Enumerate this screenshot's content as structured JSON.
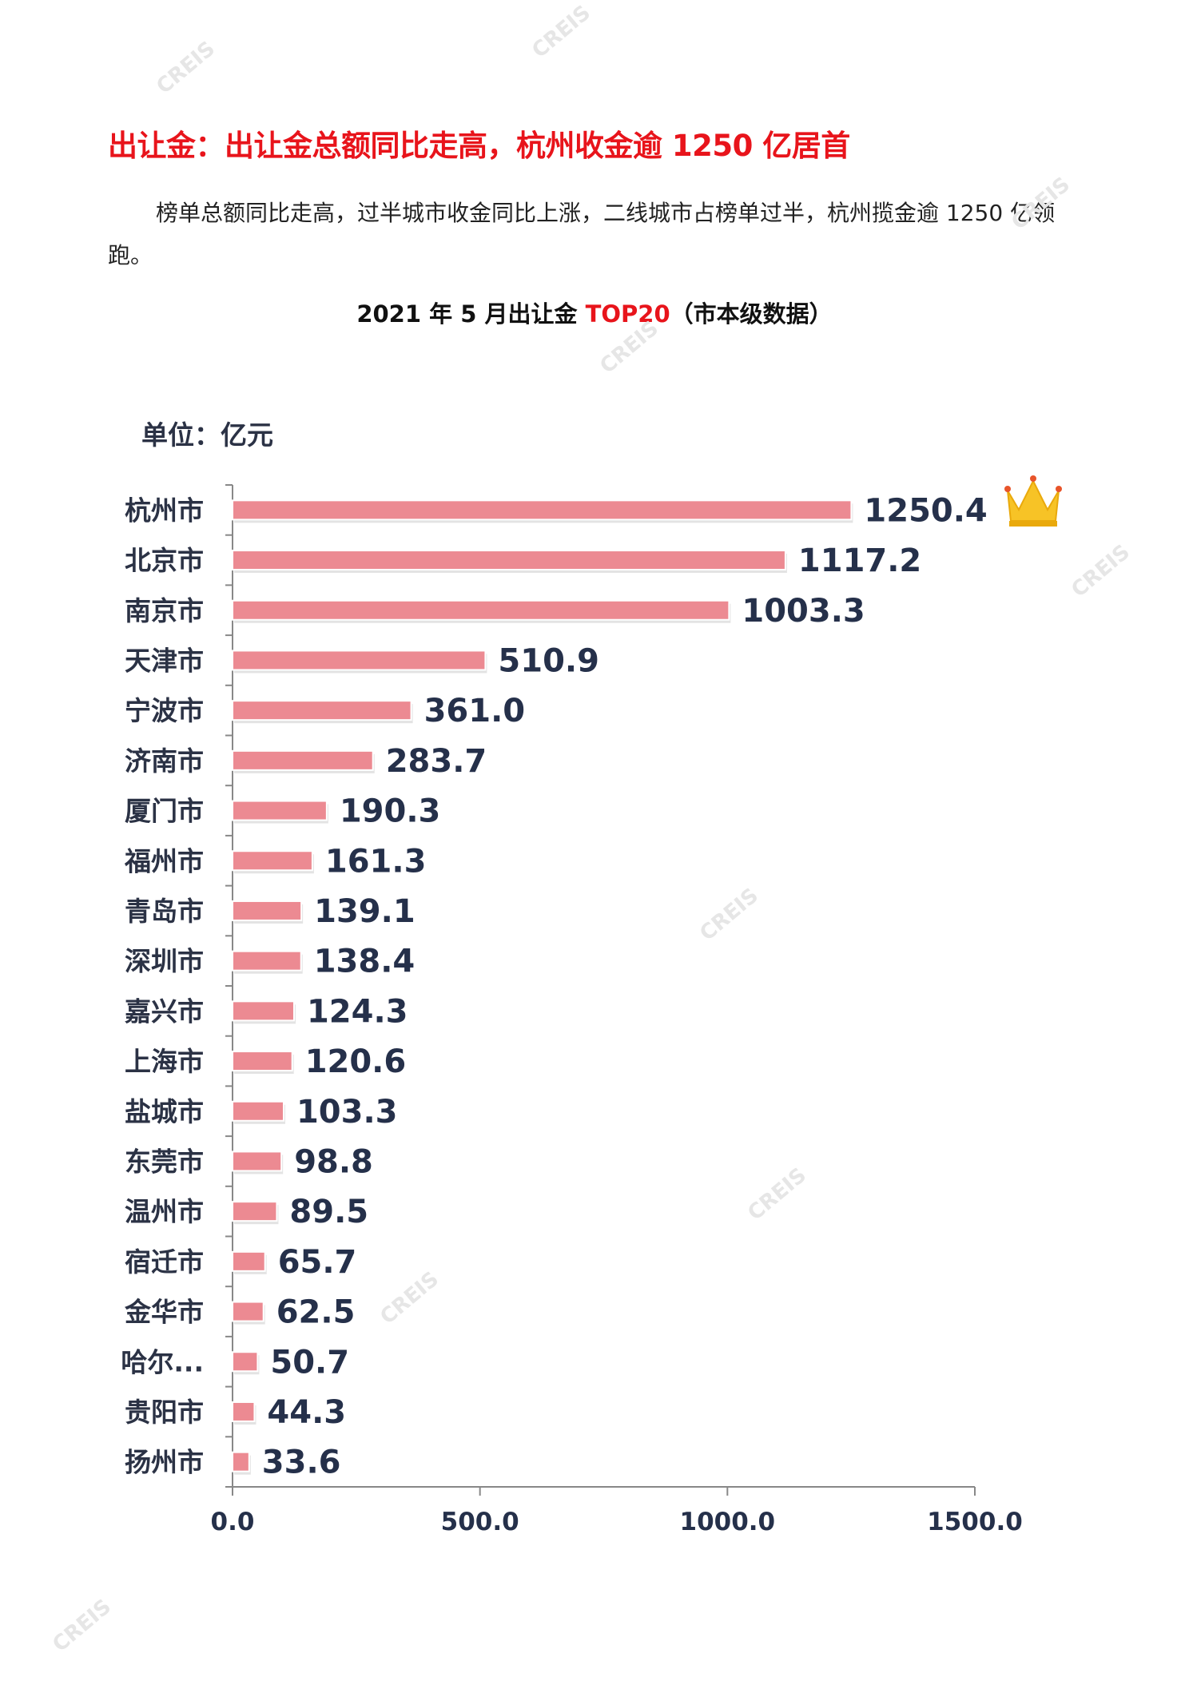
{
  "heading": {
    "title": "出让金：出让金总额同比走高，杭州收金逾 1250 亿居首"
  },
  "paragraph": "榜单总额同比走高，过半城市收金同比上涨，二线城市占榜单过半，杭州揽金逾 1250 亿领跑。",
  "chart_title": {
    "prefix": "2021 年 5 月出让金 ",
    "highlight": "TOP20",
    "suffix": "（市本级数据）"
  },
  "watermark": "CREIS",
  "chart_data": {
    "type": "bar",
    "orientation": "horizontal",
    "title": "2021 年 5 月出让金 TOP20（市本级数据）",
    "unit_label": "单位：亿元",
    "categories": [
      "杭州市",
      "北京市",
      "南京市",
      "天津市",
      "宁波市",
      "济南市",
      "厦门市",
      "福州市",
      "青岛市",
      "深圳市",
      "嘉兴市",
      "上海市",
      "盐城市",
      "东莞市",
      "温州市",
      "宿迁市",
      "金华市",
      "哈尔...",
      "贵阳市",
      "扬州市"
    ],
    "values": [
      1250.4,
      1117.2,
      1003.3,
      510.9,
      361.0,
      283.7,
      190.3,
      161.3,
      139.1,
      138.4,
      124.3,
      120.6,
      103.3,
      98.8,
      89.5,
      65.7,
      62.5,
      50.7,
      44.3,
      33.6
    ],
    "value_labels": [
      "1250.4",
      "1117.2",
      "1003.3",
      "510.9",
      "361.0",
      "283.7",
      "190.3",
      "161.3",
      "139.1",
      "138.4",
      "124.3",
      "120.6",
      "103.3",
      "98.8",
      "89.5",
      "65.7",
      "62.5",
      "50.7",
      "44.3",
      "33.6"
    ],
    "xlim": [
      0,
      1500
    ],
    "xticks": [
      "0.0",
      "500.0",
      "1000.0",
      "1500.0"
    ],
    "xtick_values": [
      0,
      500,
      1000,
      1500
    ],
    "bar_color": "#ec8a92",
    "grid": false,
    "legend": "none",
    "annotation": "crown-icon on top bar"
  }
}
